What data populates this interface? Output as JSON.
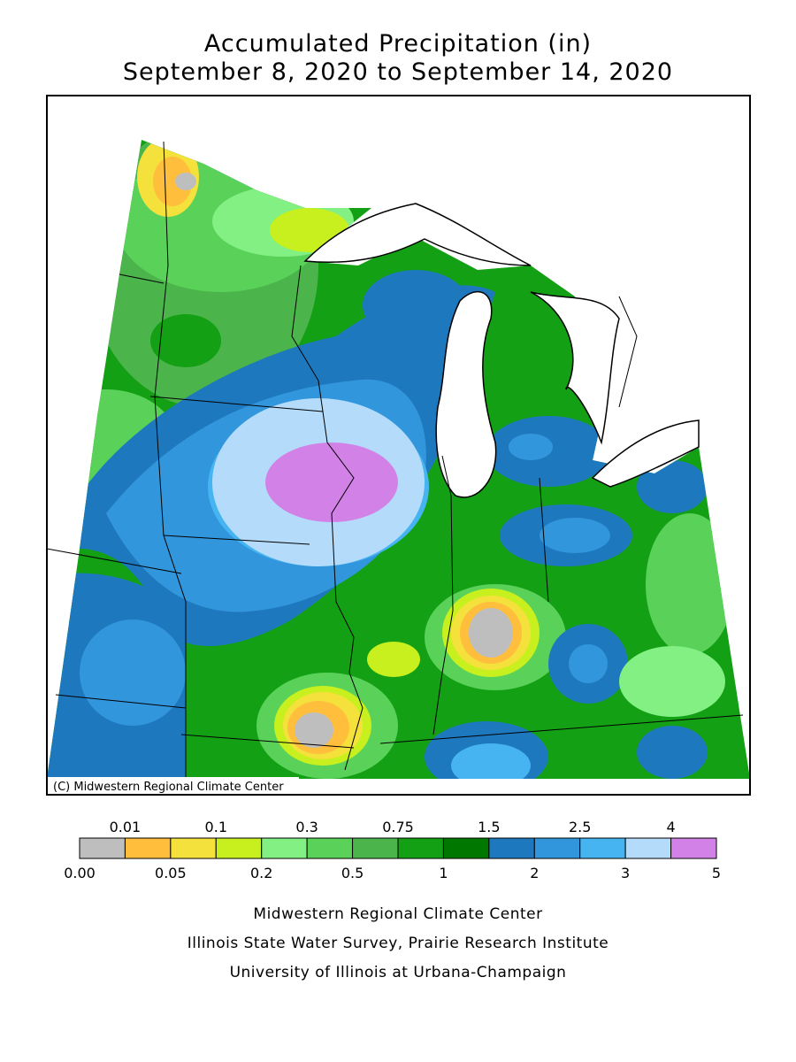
{
  "header": {
    "title": "Accumulated Precipitation (in)",
    "subtitle": "September 8, 2020 to September 14, 2020"
  },
  "map": {
    "credit": "(C) Midwestern Regional Climate Center"
  },
  "legend": {
    "boundaries": [
      {
        "value": 0,
        "label": "0.00"
      },
      0.01,
      0.05,
      0.1,
      0.2,
      0.3,
      0.5,
      0.75,
      1,
      1.5,
      2,
      2.5,
      3,
      4,
      5
    ],
    "colors": [
      "#bebebe",
      "#ffbe3c",
      "#f5e13c",
      "#c8f01e",
      "#82f082",
      "#5ad25a",
      "#4bb44b",
      "#14a014",
      "#007800",
      "#1e78be",
      "#3296dc",
      "#46b4f0",
      "#b4dcfa",
      "#d282e6"
    ]
  },
  "footer": {
    "lines": [
      "Midwestern Regional Climate Center",
      "Illinois State Water Survey, Prairie Research Institute",
      "University of Illinois at Urbana-Champaign"
    ]
  }
}
